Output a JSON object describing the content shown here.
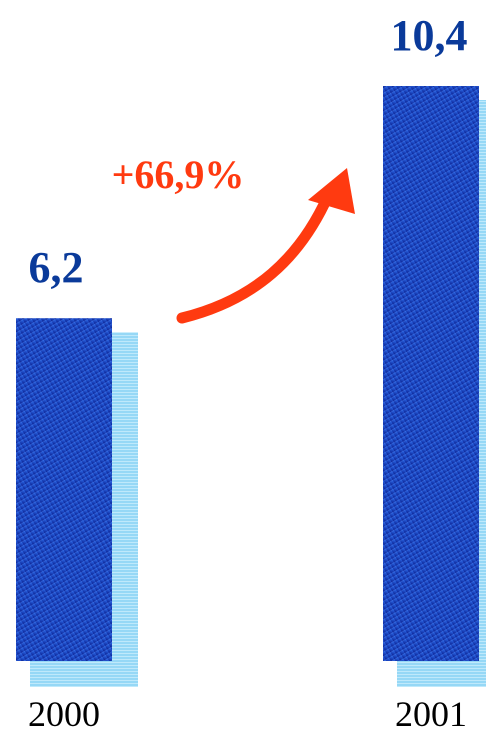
{
  "chart_data": {
    "type": "bar",
    "categories": [
      "2000",
      "2001"
    ],
    "values": [
      6.2,
      10.4
    ],
    "value_labels": [
      "6,2",
      "10,4"
    ],
    "change_label": "+66,9%",
    "title": "",
    "xlabel": "",
    "ylabel": "",
    "ylim": [
      0,
      10.4
    ],
    "grid": false
  },
  "colors": {
    "bar_dark": "#0a1f8f",
    "bar_light": "#2f6ff0",
    "shadow": "#7fd0f5",
    "label": "#0a3a9a",
    "arrow": "#ff3a10",
    "category": "#000000"
  }
}
